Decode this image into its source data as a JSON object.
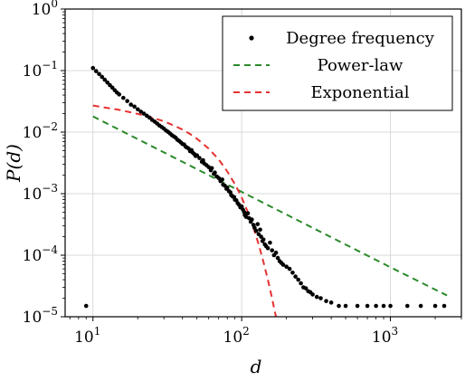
{
  "chart_data": {
    "type": "scatter",
    "xscale": "log",
    "yscale": "log",
    "xlim": [
      6.5,
      3000
    ],
    "ylim": [
      1e-05,
      1
    ],
    "xlabel": "d",
    "ylabel": "P(d)",
    "grid": true,
    "legend_position": "top-right",
    "x_ticks": [
      {
        "base": "10",
        "exp": "1",
        "value": 10
      },
      {
        "base": "10",
        "exp": "2",
        "value": 100
      },
      {
        "base": "10",
        "exp": "3",
        "value": 1000
      }
    ],
    "y_ticks": [
      {
        "base": "10",
        "exp": "0",
        "value": 1
      },
      {
        "base": "10",
        "exp": "−1",
        "value": 0.1
      },
      {
        "base": "10",
        "exp": "−2",
        "value": 0.01
      },
      {
        "base": "10",
        "exp": "−3",
        "value": 0.001
      },
      {
        "base": "10",
        "exp": "−4",
        "value": 0.0001
      },
      {
        "base": "10",
        "exp": "−5",
        "value": 1e-05
      }
    ],
    "series": [
      {
        "name": "Degree frequency",
        "kind": "scatter",
        "color": "#000000",
        "points": [
          [
            9,
            1.5e-05
          ],
          [
            10,
            0.11
          ],
          [
            10.5,
            0.098
          ],
          [
            11,
            0.088
          ],
          [
            11.5,
            0.079
          ],
          [
            12,
            0.071
          ],
          [
            12.5,
            0.064
          ],
          [
            13,
            0.058
          ],
          [
            13.5,
            0.053
          ],
          [
            14,
            0.048
          ],
          [
            14.5,
            0.044
          ],
          [
            15,
            0.041
          ],
          [
            16,
            0.036
          ],
          [
            17,
            0.032
          ],
          [
            18,
            0.028
          ],
          [
            19,
            0.026
          ],
          [
            20,
            0.0235
          ],
          [
            21,
            0.0215
          ],
          [
            22,
            0.02
          ],
          [
            23,
            0.0185
          ],
          [
            24,
            0.0172
          ],
          [
            25,
            0.0158
          ],
          [
            26,
            0.0148
          ],
          [
            27,
            0.0138
          ],
          [
            28,
            0.0128
          ],
          [
            29,
            0.0121
          ],
          [
            30,
            0.0114
          ],
          [
            31,
            0.0106
          ],
          [
            32,
            0.0101
          ],
          [
            33,
            0.0095
          ],
          [
            34,
            0.0089
          ],
          [
            35,
            0.0085
          ],
          [
            36,
            0.0081
          ],
          [
            37,
            0.0075
          ],
          [
            38,
            0.0072
          ],
          [
            39,
            0.0068
          ],
          [
            40,
            0.0064
          ],
          [
            41,
            0.0063
          ],
          [
            42,
            0.0058
          ],
          [
            43,
            0.0056
          ],
          [
            44,
            0.0054
          ],
          [
            45,
            0.0049
          ],
          [
            46,
            0.0051
          ],
          [
            47,
            0.0046
          ],
          [
            48,
            0.0044
          ],
          [
            49,
            0.0041
          ],
          [
            50,
            0.0042
          ],
          [
            52,
            0.0038
          ],
          [
            54,
            0.0033
          ],
          [
            55,
            0.0035
          ],
          [
            56,
            0.0031
          ],
          [
            58,
            0.0029
          ],
          [
            60,
            0.0027
          ],
          [
            62,
            0.0024
          ],
          [
            63,
            0.0026
          ],
          [
            65,
            0.0021
          ],
          [
            66,
            0.0022
          ],
          [
            68,
            0.0019
          ],
          [
            70,
            0.0018
          ],
          [
            72,
            0.0016
          ],
          [
            74,
            0.0017
          ],
          [
            75,
            0.0014
          ],
          [
            77,
            0.00135
          ],
          [
            79,
            0.0012
          ],
          [
            80,
            0.00125
          ],
          [
            82,
            0.0011
          ],
          [
            84,
            0.00105
          ],
          [
            85,
            0.00095
          ],
          [
            87,
            0.0009
          ],
          [
            89,
            0.00088
          ],
          [
            90,
            0.0008
          ],
          [
            92,
            0.00078
          ],
          [
            94,
            0.0007
          ],
          [
            96,
            0.00066
          ],
          [
            98,
            0.0006
          ],
          [
            100,
            0.00062
          ],
          [
            102,
            0.00055
          ],
          [
            104,
            0.0005
          ],
          [
            105,
            0.00045
          ],
          [
            107,
            0.00042
          ],
          [
            110,
            0.00048
          ],
          [
            112,
            0.0004
          ],
          [
            115,
            0.00035
          ],
          [
            117,
            0.00038
          ],
          [
            120,
            0.00031
          ],
          [
            122,
            0.00028
          ],
          [
            125,
            0.00025
          ],
          [
            128,
            0.00032
          ],
          [
            130,
            0.00022
          ],
          [
            133,
            0.00026
          ],
          [
            135,
            0.0002
          ],
          [
            138,
            0.00017
          ],
          [
            140,
            0.00018
          ],
          [
            143,
            0.00015
          ],
          [
            146,
            0.00014
          ],
          [
            150,
            0.00013
          ],
          [
            155,
            0.00016
          ],
          [
            160,
            0.00012
          ],
          [
            165,
            0.0001
          ],
          [
            170,
            0.00011
          ],
          [
            175,
            9e-05
          ],
          [
            180,
            8e-05
          ],
          [
            185,
            7.5e-05
          ],
          [
            190,
            7e-05
          ],
          [
            200,
            6.5e-05
          ],
          [
            210,
            6e-05
          ],
          [
            220,
            5.2e-05
          ],
          [
            230,
            4.5e-05
          ],
          [
            240,
            4e-05
          ],
          [
            250,
            3.5e-05
          ],
          [
            260,
            3e-05
          ],
          [
            270,
            2.9e-05
          ],
          [
            280,
            2.6e-05
          ],
          [
            290,
            2.5e-05
          ],
          [
            300,
            2.3e-05
          ],
          [
            320,
            2.1e-05
          ],
          [
            340,
            2e-05
          ],
          [
            370,
            1.8e-05
          ],
          [
            400,
            1.7e-05
          ],
          [
            450,
            1.5e-05
          ],
          [
            500,
            1.5e-05
          ],
          [
            600,
            1.5e-05
          ],
          [
            700,
            1.5e-05
          ],
          [
            800,
            1.5e-05
          ],
          [
            900,
            1.5e-05
          ],
          [
            1000,
            1.5e-05
          ],
          [
            1300,
            1.5e-05
          ],
          [
            1600,
            1.5e-05
          ],
          [
            2000,
            1.5e-05
          ],
          [
            2300,
            1.5e-05
          ]
        ]
      },
      {
        "name": "Power-law",
        "kind": "dashed-line",
        "color": "#2a8a2a",
        "points": [
          [
            10,
            0.018
          ],
          [
            100,
            0.00107
          ],
          [
            1000,
            6.37e-05
          ],
          [
            2400,
            2.22e-05
          ]
        ]
      },
      {
        "name": "Exponential",
        "kind": "dashed-line",
        "color": "#e63232",
        "points": [
          [
            10,
            0.027
          ],
          [
            15,
            0.023
          ],
          [
            20,
            0.0198
          ],
          [
            25,
            0.0172
          ],
          [
            30,
            0.015
          ],
          [
            35,
            0.0128
          ],
          [
            40,
            0.011
          ],
          [
            45,
            0.0093
          ],
          [
            50,
            0.0078
          ],
          [
            60,
            0.0054
          ],
          [
            70,
            0.0036
          ],
          [
            80,
            0.0023
          ],
          [
            90,
            0.00143
          ],
          [
            100,
            0.00087
          ],
          [
            110,
            0.0005
          ],
          [
            120,
            0.00028
          ],
          [
            130,
            0.00015
          ],
          [
            140,
            7.8e-05
          ],
          [
            150,
            4e-05
          ],
          [
            160,
            2e-05
          ],
          [
            165,
            1.4e-05
          ],
          [
            170,
            1e-05
          ]
        ]
      }
    ]
  }
}
